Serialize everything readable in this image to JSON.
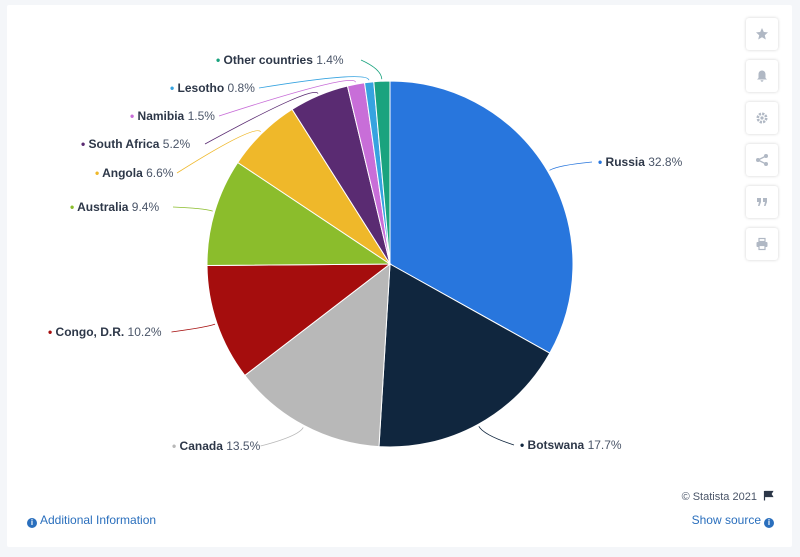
{
  "chart_data": {
    "type": "pie",
    "title": "",
    "series": [
      {
        "name": "Russia",
        "value": 32.8,
        "label": "32.8%",
        "color": "#2876dd"
      },
      {
        "name": "Botswana",
        "value": 17.7,
        "label": "17.7%",
        "color": "#10263e"
      },
      {
        "name": "Canada",
        "value": 13.5,
        "label": "13.5%",
        "color": "#b8b8b8"
      },
      {
        "name": "Congo, D.R.",
        "value": 10.2,
        "label": "10.2%",
        "color": "#a50d0d"
      },
      {
        "name": "Australia",
        "value": 9.4,
        "label": "9.4%",
        "color": "#8bbd2c"
      },
      {
        "name": "Angola",
        "value": 6.6,
        "label": "6.6%",
        "color": "#efb82a"
      },
      {
        "name": "South Africa",
        "value": 5.2,
        "label": "5.2%",
        "color": "#5a2b72"
      },
      {
        "name": "Namibia",
        "value": 1.5,
        "label": "1.5%",
        "color": "#c86ed8"
      },
      {
        "name": "Lesotho",
        "value": 0.8,
        "label": "0.8%",
        "color": "#36a3e0"
      },
      {
        "name": "Other countries",
        "value": 1.4,
        "label": "1.4%",
        "color": "#1aa37e"
      }
    ],
    "legend": "none"
  },
  "footer": {
    "credit": "© Statista 2021",
    "additional_info": "Additional Information",
    "show_source": "Show source"
  },
  "toolbar": {
    "icons": [
      "star-icon",
      "bell-icon",
      "gear-icon",
      "share-icon",
      "quote-icon",
      "print-icon"
    ]
  }
}
